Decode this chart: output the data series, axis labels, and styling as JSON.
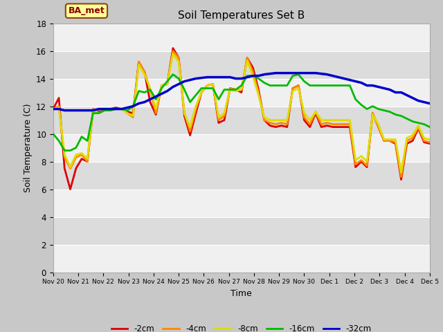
{
  "title": "Soil Temperatures Set B",
  "xlabel": "Time",
  "ylabel": "Soil Temperature (C)",
  "xlim": [
    0,
    15
  ],
  "ylim": [
    0,
    18
  ],
  "yticks": [
    0,
    2,
    4,
    6,
    8,
    10,
    12,
    14,
    16,
    18
  ],
  "xtick_labels": [
    "Nov 20",
    "Nov 21",
    "Nov 22",
    "Nov 23",
    "Nov 24",
    "Nov 25",
    "Nov 26",
    "Nov 27",
    "Nov 28",
    "Nov 29",
    "Nov 30",
    "Dec 1",
    "Dec 2",
    "Dec 3",
    "Dec 4",
    "Dec 5"
  ],
  "legend_labels": [
    "-2cm",
    "-4cm",
    "-8cm",
    "-16cm",
    "-32cm"
  ],
  "legend_colors": [
    "#dd0000",
    "#ff8800",
    "#dddd00",
    "#00bb00",
    "#0000cc"
  ],
  "annotation_text": "BA_met",
  "fig_bg": "#c8c8c8",
  "plot_bg_light": "#f0f0f0",
  "plot_bg_dark": "#dcdcdc",
  "series": {
    "d2cm": [
      11.8,
      12.6,
      7.5,
      6.0,
      7.5,
      8.2,
      8.0,
      11.8,
      11.6,
      11.7,
      11.8,
      11.9,
      11.8,
      11.6,
      11.5,
      15.2,
      14.5,
      12.3,
      11.4,
      13.5,
      13.6,
      16.2,
      15.5,
      11.3,
      9.9,
      11.5,
      13.0,
      13.5,
      13.6,
      10.8,
      11.0,
      13.3,
      13.2,
      13.0,
      15.5,
      14.8,
      13.2,
      11.0,
      10.6,
      10.5,
      10.6,
      10.5,
      13.3,
      13.5,
      11.0,
      10.5,
      11.5,
      10.5,
      10.6,
      10.5,
      10.5,
      10.5,
      10.5,
      7.6,
      8.0,
      7.6,
      11.5,
      10.5,
      9.5,
      9.5,
      9.3,
      6.7,
      9.3,
      9.5,
      10.4,
      9.4,
      9.3
    ],
    "d4cm": [
      11.8,
      12.0,
      8.3,
      7.5,
      8.3,
      8.5,
      8.0,
      11.8,
      11.5,
      11.7,
      11.7,
      11.8,
      11.8,
      11.5,
      11.2,
      15.2,
      14.5,
      13.2,
      11.5,
      13.5,
      13.6,
      16.0,
      15.5,
      11.5,
      10.2,
      11.8,
      13.0,
      13.5,
      13.6,
      11.0,
      11.3,
      13.3,
      13.2,
      13.2,
      15.5,
      14.5,
      13.0,
      11.0,
      10.8,
      10.7,
      10.8,
      10.7,
      13.3,
      13.5,
      11.2,
      10.7,
      11.6,
      10.7,
      10.8,
      10.7,
      10.7,
      10.7,
      10.7,
      7.8,
      8.1,
      7.7,
      11.5,
      10.5,
      9.5,
      9.5,
      9.4,
      6.9,
      9.5,
      9.7,
      10.5,
      9.5,
      9.4
    ],
    "d8cm": [
      11.8,
      11.9,
      8.5,
      7.6,
      8.5,
      8.6,
      8.2,
      11.7,
      11.5,
      11.7,
      11.7,
      11.8,
      11.8,
      11.5,
      11.3,
      15.0,
      14.3,
      13.3,
      11.8,
      13.5,
      13.6,
      15.8,
      15.2,
      11.5,
      10.5,
      12.0,
      13.0,
      13.5,
      13.6,
      11.2,
      11.5,
      13.2,
      13.1,
      13.2,
      15.3,
      14.2,
      12.8,
      11.2,
      11.0,
      11.0,
      11.0,
      11.0,
      13.1,
      13.3,
      11.5,
      11.0,
      11.6,
      11.0,
      11.0,
      11.0,
      11.0,
      11.0,
      11.0,
      8.1,
      8.4,
      8.0,
      11.4,
      10.7,
      9.6,
      9.6,
      9.6,
      7.2,
      9.7,
      9.9,
      10.6,
      9.7,
      9.6
    ],
    "d16cm": [
      10.0,
      9.5,
      8.8,
      8.8,
      9.0,
      9.8,
      9.5,
      11.5,
      11.5,
      11.7,
      11.7,
      11.8,
      11.8,
      11.7,
      12.0,
      13.1,
      13.0,
      13.2,
      12.5,
      13.3,
      13.8,
      14.3,
      14.0,
      13.2,
      12.3,
      12.8,
      13.3,
      13.3,
      13.3,
      12.5,
      13.2,
      13.2,
      13.2,
      13.5,
      14.2,
      14.2,
      14.0,
      13.7,
      13.5,
      13.5,
      13.5,
      13.5,
      14.2,
      14.3,
      13.8,
      13.5,
      13.5,
      13.5,
      13.5,
      13.5,
      13.5,
      13.5,
      13.5,
      12.5,
      12.1,
      11.8,
      12.0,
      11.8,
      11.7,
      11.6,
      11.4,
      11.3,
      11.1,
      10.9,
      10.8,
      10.7,
      10.5
    ],
    "d32cm": [
      11.8,
      11.8,
      11.7,
      11.7,
      11.7,
      11.7,
      11.7,
      11.7,
      11.8,
      11.8,
      11.8,
      11.8,
      11.8,
      11.9,
      12.0,
      12.2,
      12.3,
      12.5,
      12.7,
      12.9,
      13.1,
      13.4,
      13.6,
      13.8,
      13.9,
      14.0,
      14.05,
      14.1,
      14.1,
      14.1,
      14.1,
      14.1,
      14.0,
      14.0,
      14.1,
      14.2,
      14.2,
      14.3,
      14.35,
      14.4,
      14.4,
      14.4,
      14.4,
      14.4,
      14.4,
      14.4,
      14.4,
      14.35,
      14.3,
      14.2,
      14.1,
      14.0,
      13.9,
      13.8,
      13.7,
      13.5,
      13.5,
      13.4,
      13.3,
      13.2,
      13.0,
      13.0,
      12.8,
      12.6,
      12.4,
      12.3,
      12.2
    ]
  },
  "n_d2": 67,
  "n_d4": 67,
  "n_d8": 67,
  "n_d16": 67,
  "n_d32": 67
}
